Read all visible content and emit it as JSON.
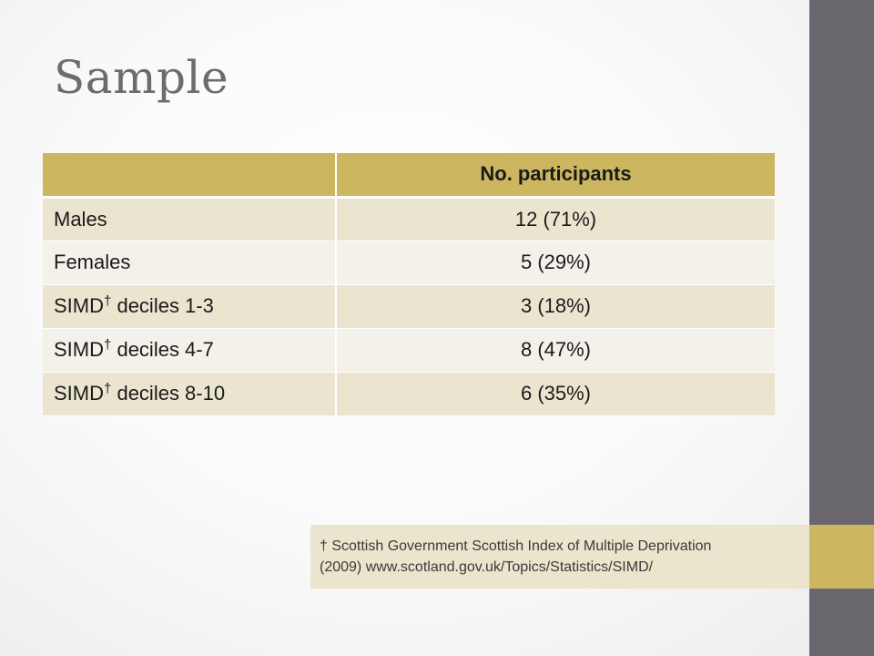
{
  "slide": {
    "title": "Sample",
    "table": {
      "header": [
        "",
        "No. participants"
      ],
      "rows": [
        {
          "label": "Males",
          "superscript": "",
          "label_suffix": "",
          "value": "12 (71%)"
        },
        {
          "label": "Females",
          "superscript": "",
          "label_suffix": "",
          "value": "5 (29%)"
        },
        {
          "label": "SIMD",
          "superscript": "†",
          "label_suffix": " deciles 1-3",
          "value": "3 (18%)"
        },
        {
          "label": "SIMD",
          "superscript": "†",
          "label_suffix": " deciles 4-7",
          "value": "8 (47%)"
        },
        {
          "label": "SIMD",
          "superscript": "†",
          "label_suffix": " deciles 8-10",
          "value": "6 (35%)"
        }
      ]
    },
    "footnote": {
      "line1": "† Scottish Government Scottish Index of Multiple Deprivation",
      "line2": "(2009) www.scotland.gov.uk/Topics/Statistics/SIMD/"
    },
    "colors": {
      "accent_gold": "#ccb660",
      "side_bar": "#69666e",
      "row_light": "#ebe5d0",
      "row_lighter": "#f4f1ea",
      "title_gray": "#6e6a70"
    }
  }
}
